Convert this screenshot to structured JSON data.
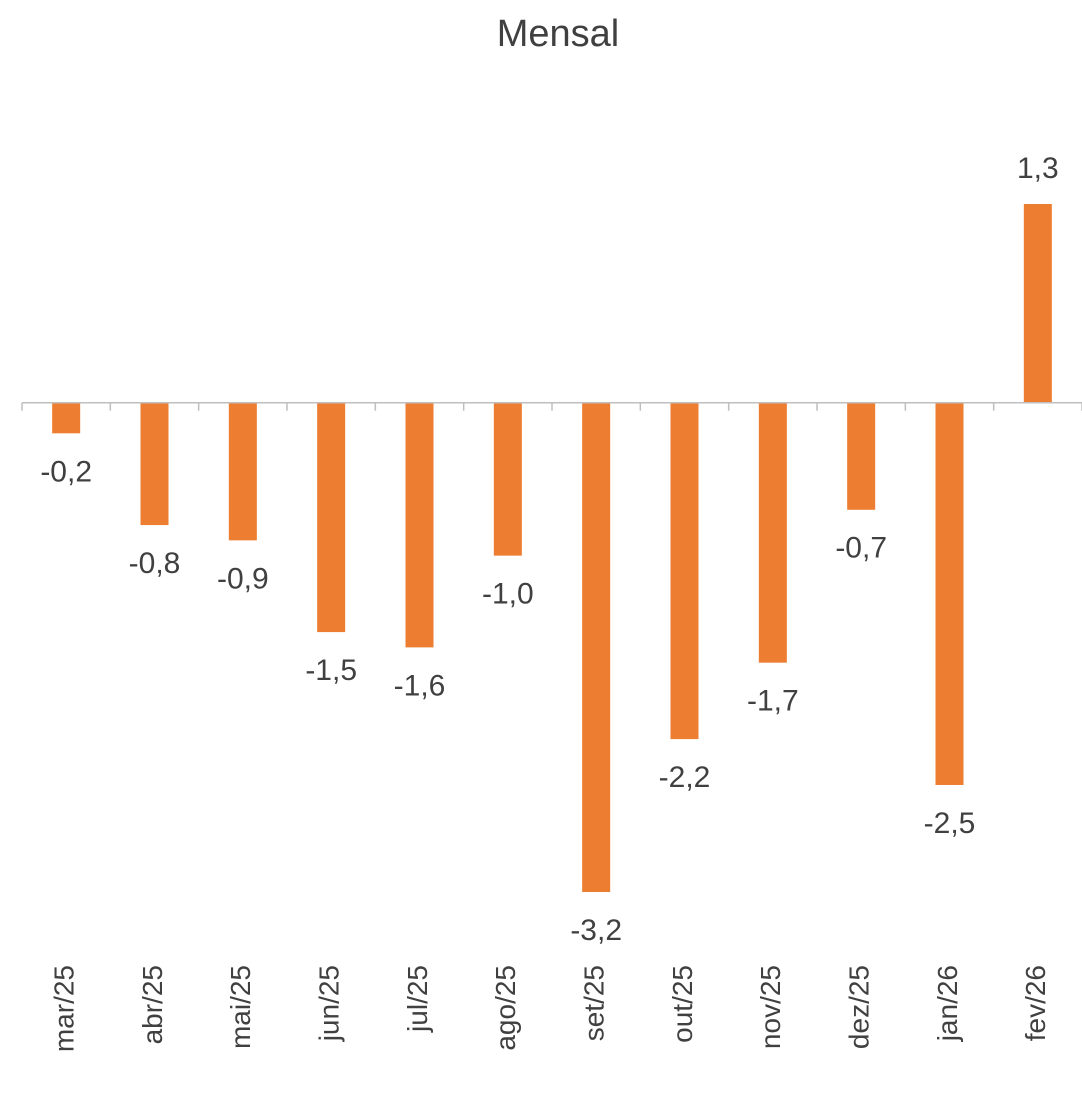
{
  "chart_data": {
    "type": "bar",
    "title": "Mensal",
    "categories": [
      "mar/25",
      "abr/25",
      "mai/25",
      "jun/25",
      "jul/25",
      "ago/25",
      "set/25",
      "out/25",
      "nov/25",
      "dez/25",
      "jan/26",
      "fev/26"
    ],
    "values": [
      -0.2,
      -0.8,
      -0.9,
      -1.5,
      -1.6,
      -1.0,
      -3.2,
      -2.2,
      -1.7,
      -0.7,
      -2.5,
      1.3
    ],
    "value_labels": [
      "-0,2",
      "-0,8",
      "-0,9",
      "-1,5",
      "-1,6",
      "-1,0",
      "-3,2",
      "-2,2",
      "-1,7",
      "-0,7",
      "-2,5",
      "1,3"
    ],
    "color": "#ed7d31"
  }
}
